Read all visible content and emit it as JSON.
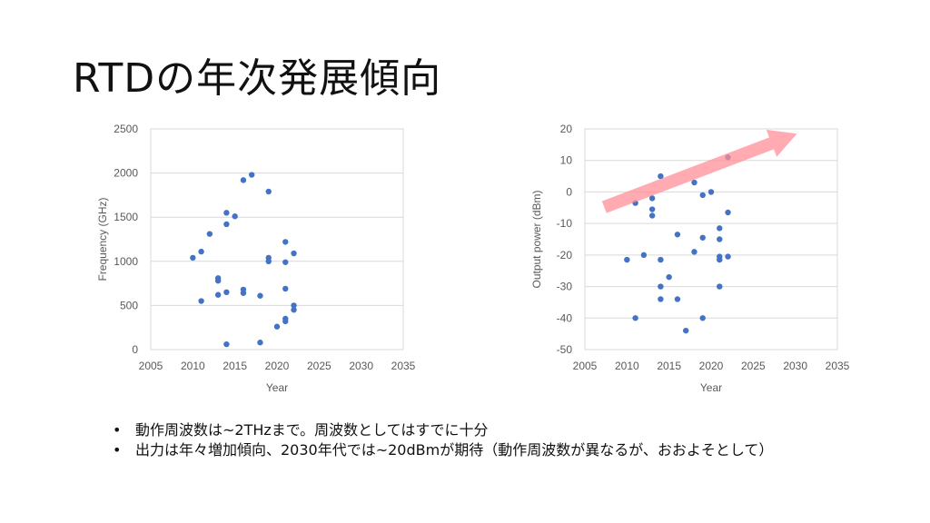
{
  "title": "RTDの年次発展傾向",
  "bullets": [
    "動作周波数は~2THzまで。周波数としてはすでに十分",
    "出力は年々増加傾向、2030年代では~20dBmが期待（動作周波数が異なるが、おおよそとして）"
  ],
  "chart_data": [
    {
      "type": "scatter",
      "xlabel": "Year",
      "ylabel": "Frequency (GHz)",
      "xlim": [
        2005,
        2035
      ],
      "ylim": [
        0,
        2500
      ],
      "xticks": [
        2005,
        2010,
        2015,
        2020,
        2025,
        2030,
        2035
      ],
      "yticks": [
        0,
        500,
        1000,
        1500,
        2000,
        2500
      ],
      "grid": "horizontal",
      "color": "#4472c4",
      "points": [
        {
          "x": 2010,
          "y": 1040
        },
        {
          "x": 2011,
          "y": 1110
        },
        {
          "x": 2011,
          "y": 550
        },
        {
          "x": 2012,
          "y": 1310
        },
        {
          "x": 2013,
          "y": 810
        },
        {
          "x": 2013,
          "y": 780
        },
        {
          "x": 2013,
          "y": 620
        },
        {
          "x": 2014,
          "y": 1550
        },
        {
          "x": 2014,
          "y": 1420
        },
        {
          "x": 2014,
          "y": 650
        },
        {
          "x": 2014,
          "y": 60
        },
        {
          "x": 2015,
          "y": 1510
        },
        {
          "x": 2016,
          "y": 1920
        },
        {
          "x": 2016,
          "y": 680
        },
        {
          "x": 2016,
          "y": 640
        },
        {
          "x": 2017,
          "y": 1980
        },
        {
          "x": 2018,
          "y": 610
        },
        {
          "x": 2018,
          "y": 80
        },
        {
          "x": 2019,
          "y": 1790
        },
        {
          "x": 2019,
          "y": 1040
        },
        {
          "x": 2019,
          "y": 1000
        },
        {
          "x": 2020,
          "y": 260
        },
        {
          "x": 2021,
          "y": 1220
        },
        {
          "x": 2021,
          "y": 990
        },
        {
          "x": 2021,
          "y": 690
        },
        {
          "x": 2021,
          "y": 350
        },
        {
          "x": 2021,
          "y": 320
        },
        {
          "x": 2022,
          "y": 1090
        },
        {
          "x": 2022,
          "y": 500
        },
        {
          "x": 2022,
          "y": 450
        }
      ]
    },
    {
      "type": "scatter",
      "xlabel": "Year",
      "ylabel": "Output power (dBm)",
      "xlim": [
        2005,
        2035
      ],
      "ylim": [
        -50,
        20
      ],
      "xticks": [
        2005,
        2010,
        2015,
        2020,
        2025,
        2030,
        2035
      ],
      "yticks": [
        -50,
        -40,
        -30,
        -20,
        -10,
        0,
        10,
        20
      ],
      "grid": "horizontal",
      "color": "#4472c4",
      "trend_arrow": {
        "from": {
          "x": 2007.3,
          "y": -4.8
        },
        "to": {
          "x": 2030.2,
          "y": 18.5
        },
        "color": "#ff8f97"
      },
      "points": [
        {
          "x": 2010,
          "y": -21.5
        },
        {
          "x": 2011,
          "y": -3.5
        },
        {
          "x": 2011,
          "y": -40
        },
        {
          "x": 2012,
          "y": -20
        },
        {
          "x": 2013,
          "y": -2
        },
        {
          "x": 2013,
          "y": -5.5
        },
        {
          "x": 2013,
          "y": -7.5
        },
        {
          "x": 2014,
          "y": 5
        },
        {
          "x": 2014,
          "y": -21.5
        },
        {
          "x": 2014,
          "y": -30
        },
        {
          "x": 2014,
          "y": -34
        },
        {
          "x": 2015,
          "y": -27
        },
        {
          "x": 2016,
          "y": -13.5
        },
        {
          "x": 2016,
          "y": -34
        },
        {
          "x": 2017,
          "y": -44
        },
        {
          "x": 2018,
          "y": 3
        },
        {
          "x": 2018,
          "y": -19
        },
        {
          "x": 2019,
          "y": -1
        },
        {
          "x": 2019,
          "y": -14.5
        },
        {
          "x": 2019,
          "y": -40
        },
        {
          "x": 2020,
          "y": 0
        },
        {
          "x": 2021,
          "y": -11.5
        },
        {
          "x": 2021,
          "y": -15
        },
        {
          "x": 2021,
          "y": -20.5
        },
        {
          "x": 2021,
          "y": -21.5
        },
        {
          "x": 2021,
          "y": -30
        },
        {
          "x": 2022,
          "y": 11
        },
        {
          "x": 2022,
          "y": -6.5
        },
        {
          "x": 2022,
          "y": -20.5
        }
      ]
    }
  ]
}
